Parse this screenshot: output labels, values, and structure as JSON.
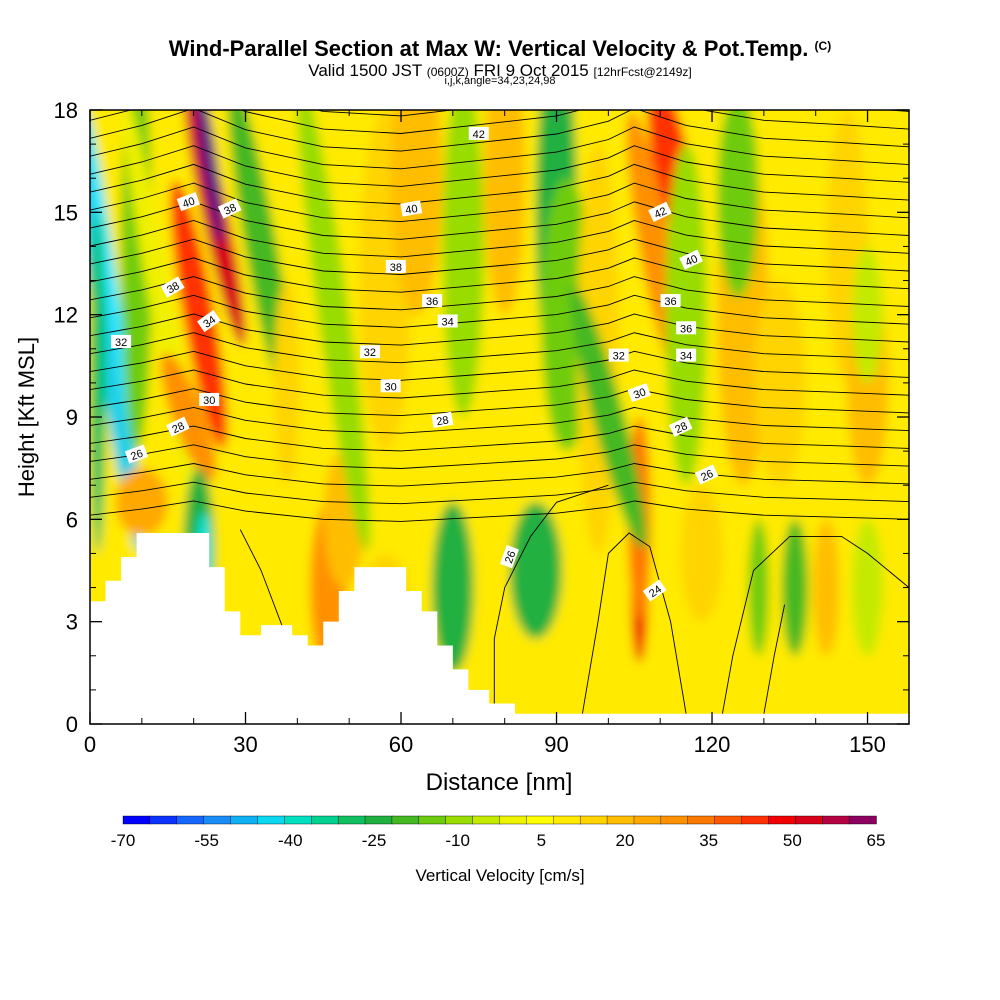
{
  "header": {
    "title": "Wind-Parallel Section at Max W: Vertical Velocity & Pot.Temp.",
    "title_mark": "(C)",
    "valid_time": "Valid 1500 JST",
    "utc": "(0600Z)",
    "date": "FRI 9 Oct 2015",
    "forecast": "[12hrFcst@2149z]",
    "grid_info": "i,j,k,angle=34,23,24,98"
  },
  "chart_data": {
    "type": "heatmap",
    "xlabel": "Distance [nm]",
    "ylabel": "Height [Kft MSL]",
    "xlim": [
      0,
      158
    ],
    "ylim": [
      0,
      18
    ],
    "x_ticks": [
      "0",
      "30",
      "60",
      "90",
      "120",
      "150"
    ],
    "x_tick_values": [
      0,
      30,
      60,
      90,
      120,
      150
    ],
    "y_ticks": [
      "0",
      "3",
      "6",
      "9",
      "12",
      "15",
      "18"
    ],
    "y_tick_values": [
      0,
      3,
      6,
      9,
      12,
      15,
      18
    ],
    "colorbar": {
      "label": "Vertical Velocity [cm/s]",
      "tick_labels": [
        "-70",
        "-55",
        "-40",
        "-25",
        "-10",
        "5",
        "20",
        "35",
        "50",
        "65"
      ],
      "min": -70,
      "max": 65,
      "step": 5,
      "colors": [
        "#0000ff",
        "#0a33ff",
        "#1466ff",
        "#1a8cf5",
        "#10b0f5",
        "#0ad8f0",
        "#00e0c0",
        "#00d090",
        "#10c060",
        "#20b040",
        "#44b820",
        "#6ecc10",
        "#98dc00",
        "#c4ea00",
        "#eef400",
        "#ffff00",
        "#ffea00",
        "#ffd400",
        "#ffbd00",
        "#ffa800",
        "#ff9000",
        "#ff7800",
        "#ff5800",
        "#ff3000",
        "#f00000",
        "#d80018",
        "#b40040",
        "#8c0060"
      ]
    },
    "contour_label_values": [
      "42",
      "40",
      "38",
      "40",
      "42",
      "40",
      "38",
      "36",
      "36",
      "38",
      "34",
      "36",
      "32",
      "34",
      "32",
      "32",
      "34",
      "30",
      "30",
      "30",
      "28",
      "28",
      "28",
      "26",
      "26",
      "26",
      "24"
    ],
    "terrain_kft": [
      [
        0,
        3.6
      ],
      [
        3,
        4.2
      ],
      [
        6,
        4.9
      ],
      [
        9,
        5.6
      ],
      [
        23,
        4.6
      ],
      [
        26,
        3.3
      ],
      [
        29,
        2.6
      ],
      [
        33,
        2.9
      ],
      [
        39,
        2.6
      ],
      [
        42,
        2.3
      ],
      [
        45,
        3.0
      ],
      [
        48,
        3.9
      ],
      [
        51,
        4.6
      ],
      [
        61,
        3.9
      ],
      [
        64,
        3.3
      ],
      [
        67,
        2.3
      ],
      [
        70,
        1.6
      ],
      [
        73,
        1.0
      ],
      [
        77,
        0.6
      ],
      [
        82,
        0.3
      ],
      [
        158,
        0.3
      ]
    ]
  }
}
